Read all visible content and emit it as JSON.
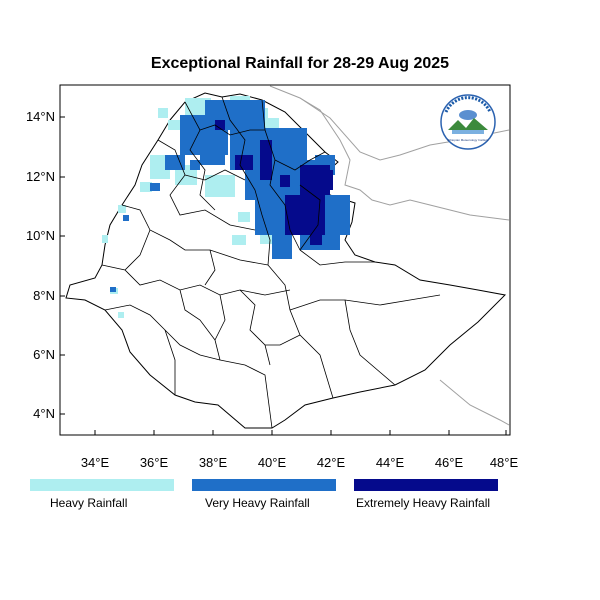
{
  "title": "Exceptional Rainfall for 28-29 Aug 2025",
  "lat_ticks": [
    "14°N",
    "12°N",
    "10°N",
    "8°N",
    "6°N",
    "4°N"
  ],
  "lon_ticks": [
    "34°E",
    "36°E",
    "38°E",
    "40°E",
    "42°E",
    "44°E",
    "46°E",
    "48°E"
  ],
  "logo_label": "Ethiopian Meteorology Institute",
  "colors": {
    "heavy": "#aeeef0",
    "very_heavy": "#1f6fc8",
    "extreme": "#050a8c",
    "boundary": "#000000",
    "neighbor_border": "#a0a0a0"
  },
  "legend": [
    {
      "label": "Heavy Rainfall",
      "color": "#aeeef0"
    },
    {
      "label": "Very Heavy Rainfall",
      "color": "#1f6fc8"
    },
    {
      "label": "Extremely Heavy Rainfall",
      "color": "#050a8c"
    }
  ]
}
